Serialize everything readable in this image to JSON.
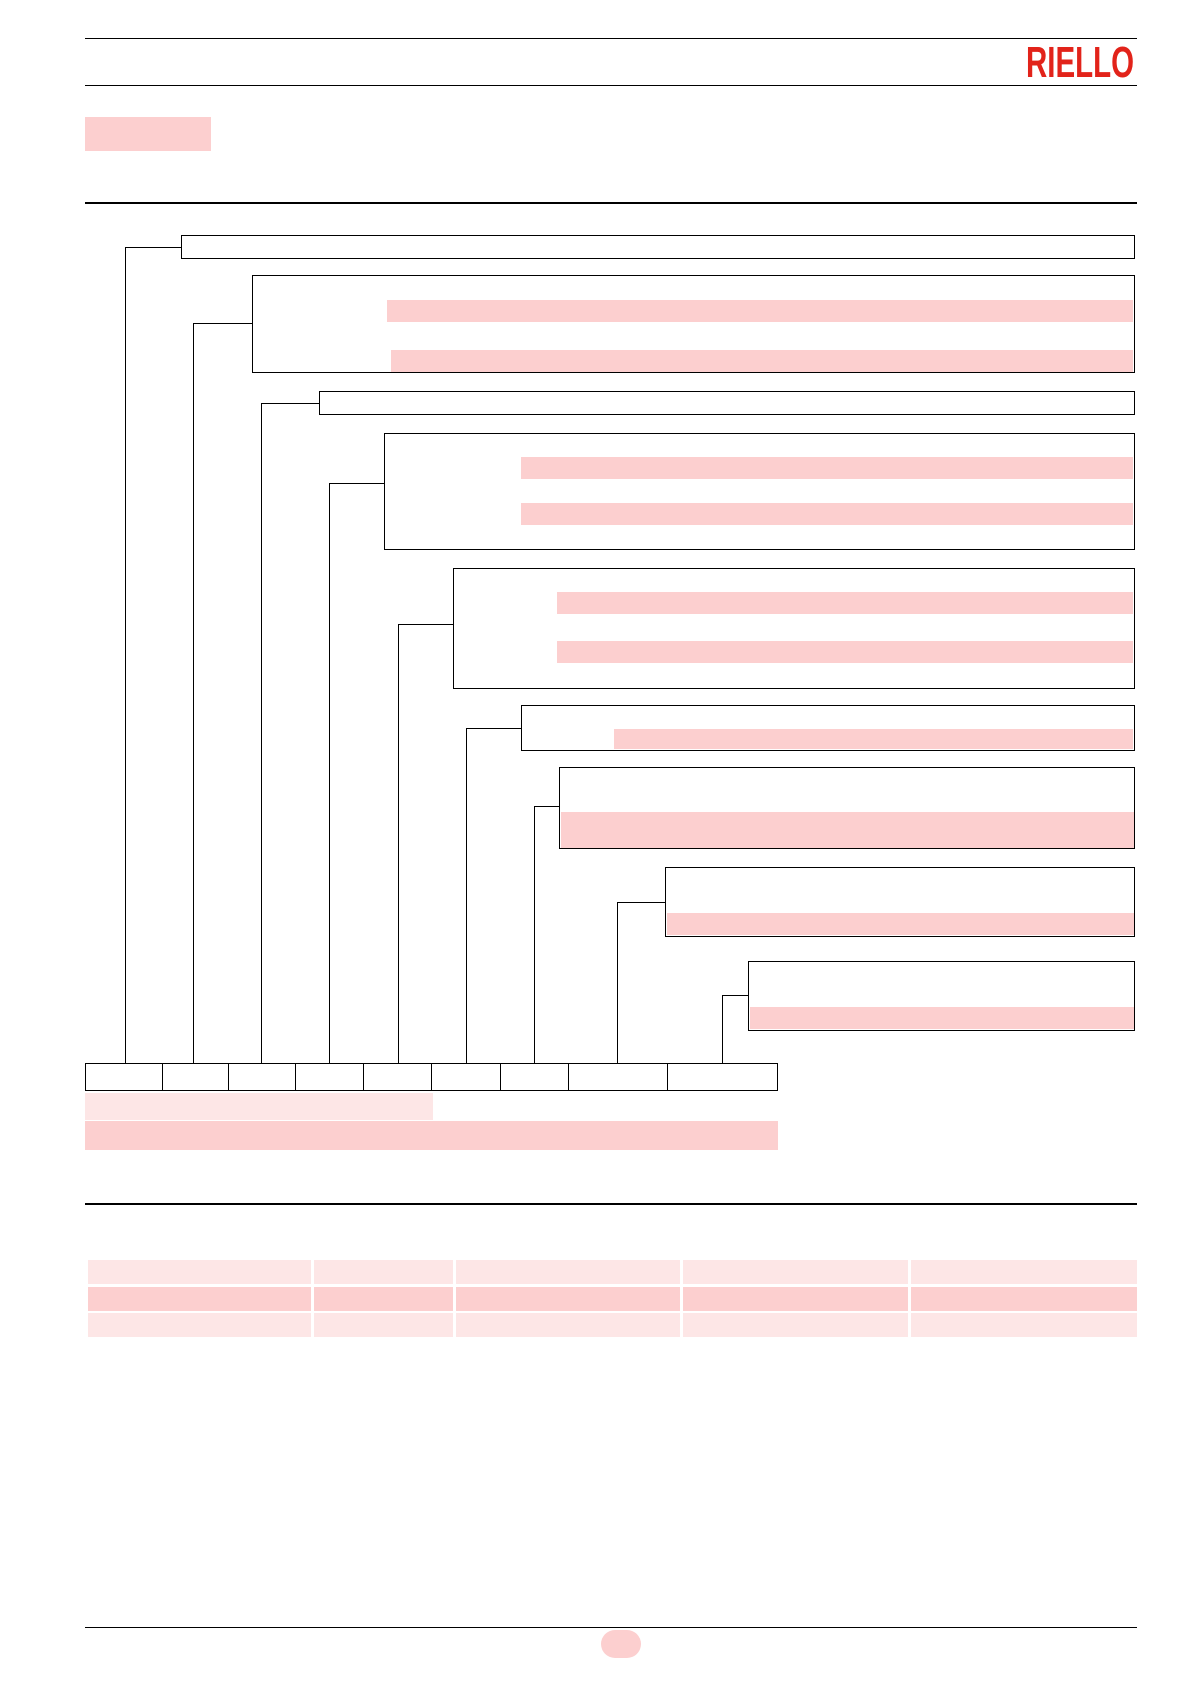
{
  "header": {
    "brand": "RIELLO",
    "brand_color": "#e2231a"
  },
  "colors": {
    "placeholder_fill": "#fccfcf",
    "placeholder_fill_light": "#fde6e6",
    "rule": "#000000"
  }
}
